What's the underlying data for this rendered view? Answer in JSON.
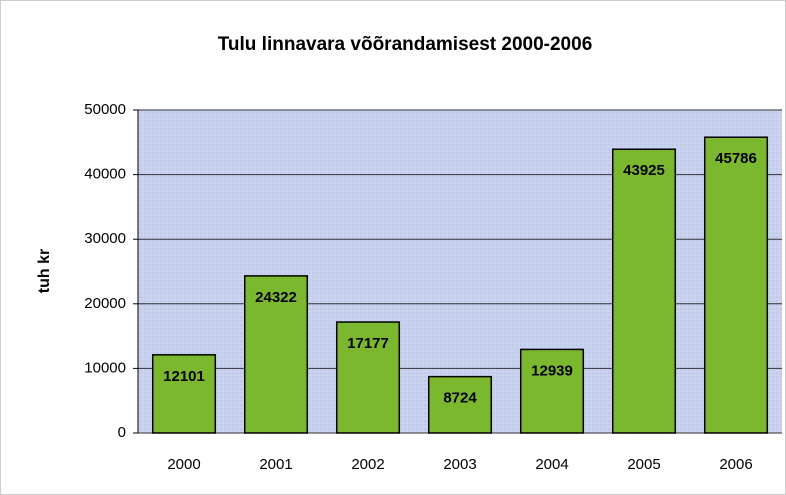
{
  "chart_data": {
    "type": "bar",
    "title": "Tulu linnavara võõrandamisest 2000-2006",
    "y_label": "tuh kr",
    "categories": [
      "2000",
      "2001",
      "2002",
      "2003",
      "2004",
      "2005",
      "2006"
    ],
    "values": [
      12101,
      24322,
      17177,
      8724,
      12939,
      43925,
      45786
    ],
    "color": "#7cb82f",
    "ylim": [
      0,
      50000
    ],
    "yticks": [
      0,
      10000,
      20000,
      30000,
      40000,
      50000
    ],
    "grid": true
  }
}
